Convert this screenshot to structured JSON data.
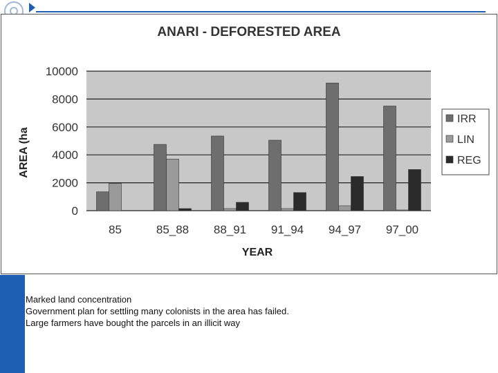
{
  "chart_data": {
    "type": "bar",
    "title": "ANARI - DEFORESTED AREA",
    "xlabel": "YEAR",
    "ylabel": "AREA (ha)",
    "ylabel_visible": "AREA (ha",
    "ylim": [
      0,
      10000
    ],
    "yticks": [
      0,
      2000,
      4000,
      6000,
      8000,
      10000
    ],
    "grid": true,
    "legend_position": "right",
    "categories": [
      "85",
      "85_88",
      "88_91",
      "91_94",
      "94_97",
      "97_00"
    ],
    "series": [
      {
        "name": "IRR",
        "color": "#6e6e6e",
        "values": [
          1350,
          4750,
          5350,
          5050,
          9150,
          7500
        ]
      },
      {
        "name": "LIN",
        "color": "#9a9a9a",
        "values": [
          1950,
          3700,
          150,
          150,
          350,
          50
        ]
      },
      {
        "name": "REG",
        "color": "#2b2b2b",
        "values": [
          0,
          150,
          600,
          1300,
          2450,
          2950
        ]
      }
    ],
    "plot_background": "#c8c8c8"
  },
  "notes": [
    "Marked land concentration",
    "Government plan for settling many colonists in the area has failed.",
    "Large farmers have bought the parcels in an illicit way"
  ],
  "colors": {
    "accent": "#1f5fb3"
  }
}
